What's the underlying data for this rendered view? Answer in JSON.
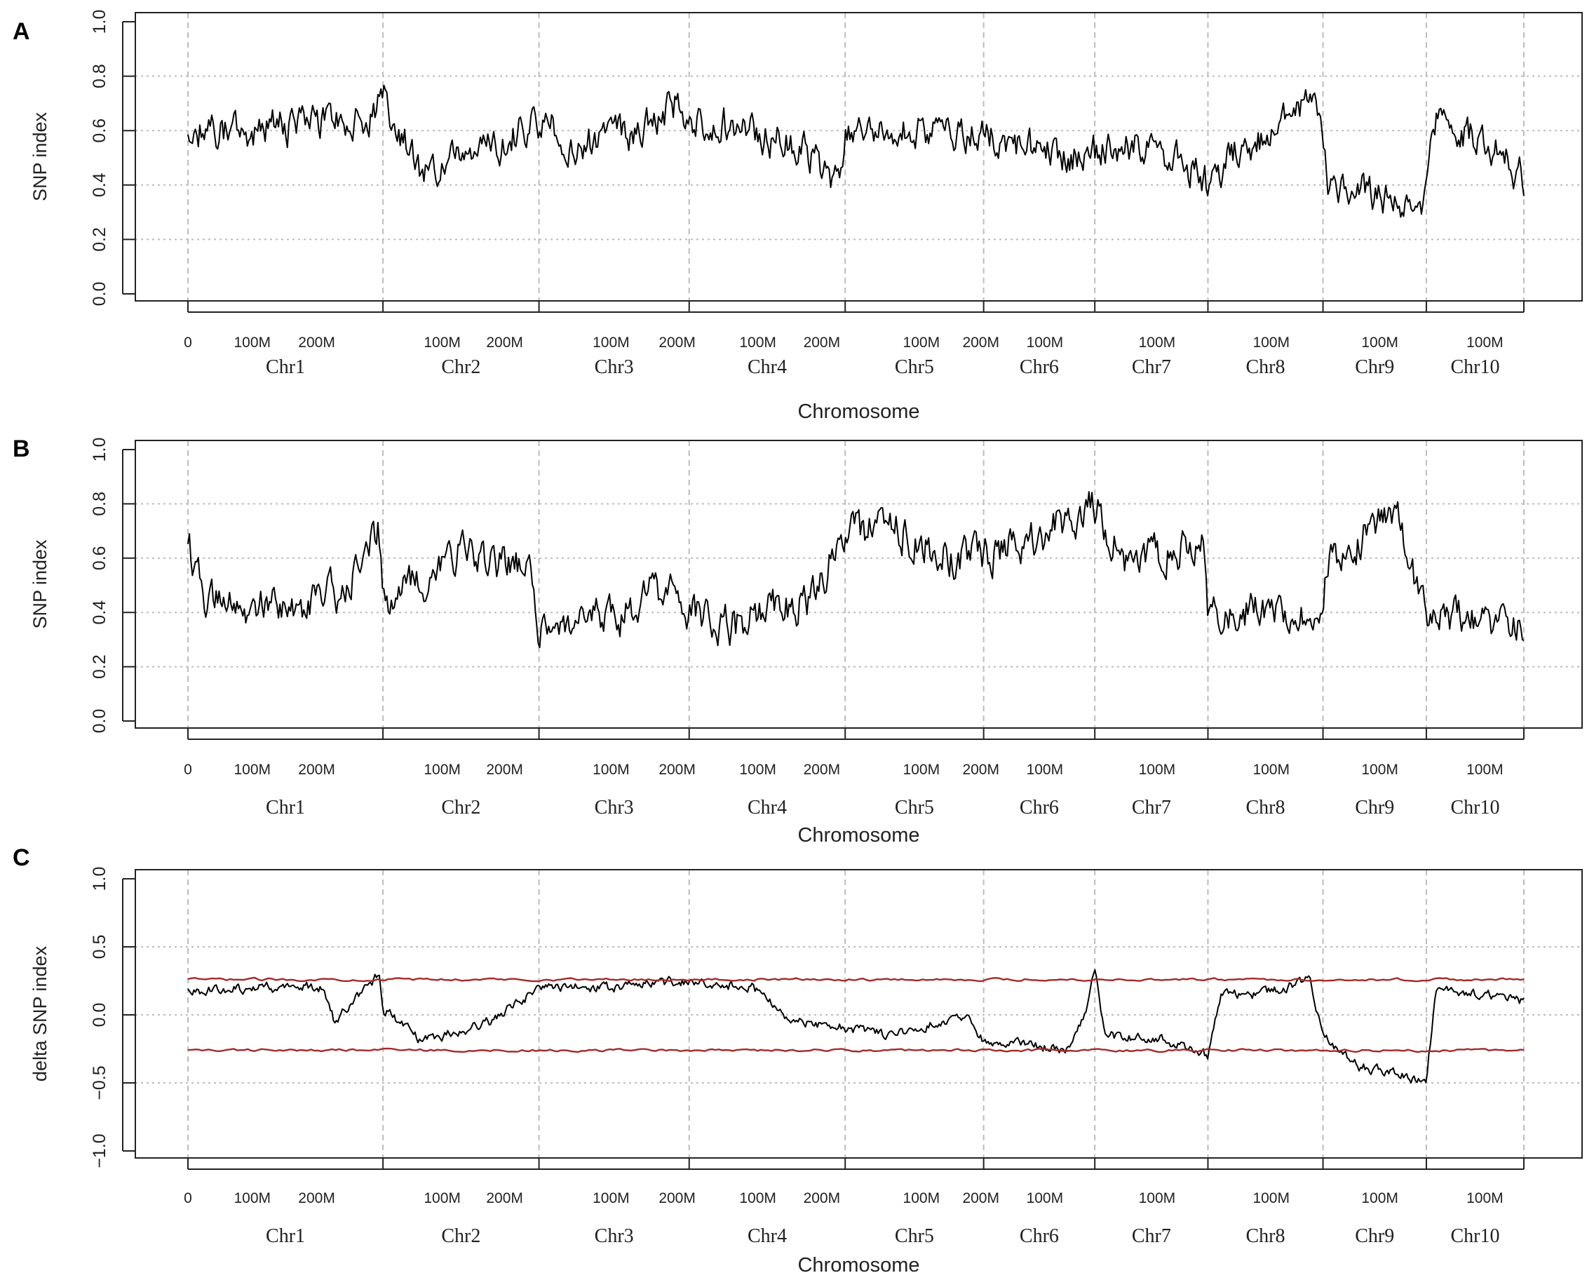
{
  "chromosomes": [
    "Chr1",
    "Chr2",
    "Chr3",
    "Chr4",
    "Chr5",
    "Chr6",
    "Chr7",
    "Chr8",
    "Chr9",
    "Chr10"
  ],
  "chrom_bounds": [
    0,
    1,
    1.8,
    2.57,
    3.37,
    4.08,
    4.65,
    5.23,
    5.82,
    6.35,
    6.85
  ],
  "x_tick_labels": [
    {
      "chr": 0,
      "label": "0",
      "frac": 0.0
    },
    {
      "chr": 0,
      "label": "100M",
      "frac": 0.33
    },
    {
      "chr": 0,
      "label": "200M",
      "frac": 0.66
    },
    {
      "chr": 1,
      "label": "100M",
      "frac": 0.38
    },
    {
      "chr": 1,
      "label": "200M",
      "frac": 0.78
    },
    {
      "chr": 2,
      "label": "100M",
      "frac": 0.48
    },
    {
      "chr": 2,
      "label": "200M",
      "frac": 0.92
    },
    {
      "chr": 3,
      "label": "100M",
      "frac": 0.44
    },
    {
      "chr": 3,
      "label": "200M",
      "frac": 0.85
    },
    {
      "chr": 4,
      "label": "100M",
      "frac": 0.55
    },
    {
      "chr": 4,
      "label": "200M",
      "frac": 0.98
    },
    {
      "chr": 5,
      "label": "100M",
      "frac": 0.55
    },
    {
      "chr": 6,
      "label": "100M",
      "frac": 0.55
    },
    {
      "chr": 7,
      "label": "100M",
      "frac": 0.55
    },
    {
      "chr": 8,
      "label": "100M",
      "frac": 0.55
    },
    {
      "chr": 9,
      "label": "100M",
      "frac": 0.6
    }
  ],
  "colors": {
    "line": "#000000",
    "threshold": "#a52a2a",
    "grid": "#bdbdbd",
    "axis": "#222222"
  },
  "chart_data": [
    {
      "panel_label": "A",
      "type": "line",
      "ylabel": "SNP index",
      "xlabel": "Chromosome",
      "ylim": [
        0,
        1
      ],
      "yticks": [
        "0.0",
        "0.2",
        "0.4",
        "0.6",
        "0.8",
        "1.0"
      ],
      "ytick_values": [
        0,
        0.2,
        0.4,
        0.6,
        0.8,
        1.0
      ],
      "grid": true,
      "series": [
        {
          "role": "snp-index",
          "x": [
            0,
            0.3,
            0.6,
            0.95,
            1.0,
            1.2,
            1.5,
            1.78,
            2.0,
            2.3,
            2.5,
            2.57,
            2.8,
            3.1,
            3.35,
            3.37,
            3.6,
            3.8,
            4.07,
            4.3,
            4.6,
            4.8,
            5.1,
            5.23,
            5.4,
            5.6,
            5.78,
            5.85,
            6.1,
            6.33,
            6.4,
            6.6,
            6.85
          ],
          "y": [
            0.6,
            0.6,
            0.62,
            0.66,
            0.72,
            0.45,
            0.5,
            0.64,
            0.55,
            0.6,
            0.7,
            0.65,
            0.62,
            0.55,
            0.4,
            0.6,
            0.62,
            0.58,
            0.58,
            0.54,
            0.5,
            0.56,
            0.5,
            0.4,
            0.54,
            0.6,
            0.72,
            0.4,
            0.36,
            0.3,
            0.64,
            0.58,
            0.42
          ]
        }
      ]
    },
    {
      "panel_label": "B",
      "type": "line",
      "ylabel": "SNP index",
      "xlabel": "Chromosome",
      "ylim": [
        0,
        1
      ],
      "yticks": [
        "0.0",
        "0.2",
        "0.4",
        "0.6",
        "0.8",
        "1.0"
      ],
      "ytick_values": [
        0,
        0.2,
        0.4,
        0.6,
        0.8,
        1.0
      ],
      "grid": true,
      "series": [
        {
          "role": "snp-index",
          "x": [
            0,
            0.1,
            0.5,
            0.8,
            0.98,
            1.0,
            1.4,
            1.75,
            1.8,
            2.2,
            2.45,
            2.57,
            2.8,
            3.2,
            3.37,
            3.6,
            3.9,
            4.08,
            4.3,
            4.65,
            4.8,
            5.2,
            5.23,
            5.5,
            5.8,
            5.85,
            6.2,
            6.35,
            6.6,
            6.85
          ],
          "y": [
            0.65,
            0.45,
            0.4,
            0.48,
            0.72,
            0.42,
            0.62,
            0.55,
            0.36,
            0.38,
            0.5,
            0.4,
            0.35,
            0.45,
            0.7,
            0.72,
            0.6,
            0.6,
            0.66,
            0.8,
            0.6,
            0.65,
            0.4,
            0.42,
            0.4,
            0.6,
            0.75,
            0.4,
            0.36,
            0.32
          ]
        }
      ]
    },
    {
      "panel_label": "C",
      "type": "line",
      "ylabel": "delta SNP index",
      "xlabel": "Chromosome",
      "ylim": [
        -1,
        1
      ],
      "yticks": [
        "−1.0",
        "−0.5",
        "0.0",
        "0.5",
        "1.0"
      ],
      "ytick_values": [
        -1.0,
        -0.5,
        0.0,
        0.5,
        1.0
      ],
      "grid": true,
      "series": [
        {
          "role": "delta-snp-index",
          "x": [
            0,
            0.3,
            0.7,
            0.75,
            0.98,
            1.0,
            1.2,
            1.55,
            1.8,
            2.2,
            2.57,
            2.9,
            3.1,
            3.37,
            3.6,
            4.0,
            4.08,
            4.5,
            4.6,
            4.65,
            4.7,
            5.0,
            5.23,
            5.3,
            5.5,
            5.75,
            5.82,
            6.0,
            6.35,
            6.4,
            6.85
          ],
          "y": [
            0.18,
            0.2,
            0.2,
            -0.05,
            0.3,
            0.05,
            -0.2,
            -0.05,
            0.2,
            0.2,
            0.25,
            0.2,
            -0.05,
            -0.1,
            -0.15,
            0.0,
            -0.2,
            -0.25,
            0.0,
            0.38,
            -0.15,
            -0.18,
            -0.3,
            0.15,
            0.15,
            0.25,
            -0.15,
            -0.38,
            -0.48,
            0.2,
            0.1
          ]
        },
        {
          "role": "upper-threshold",
          "x": [
            0,
            6.85
          ],
          "y": [
            0.26,
            0.26
          ]
        },
        {
          "role": "lower-threshold",
          "x": [
            0,
            6.85
          ],
          "y": [
            -0.26,
            -0.26
          ]
        }
      ]
    }
  ]
}
